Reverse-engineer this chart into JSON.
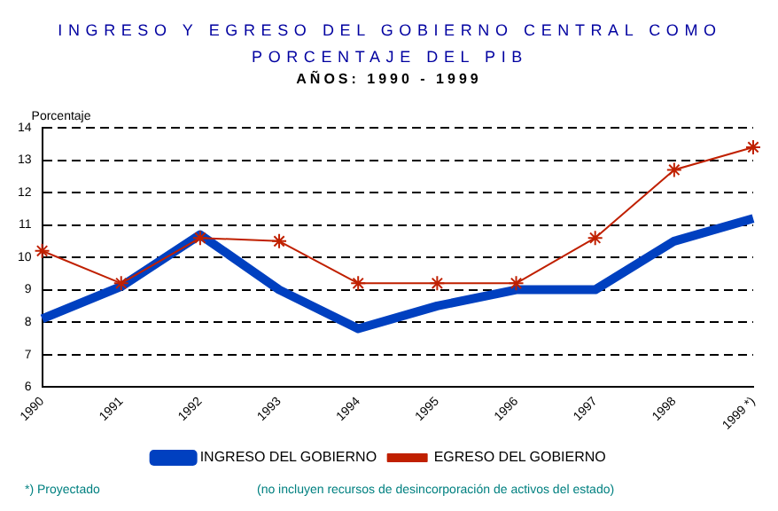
{
  "chart_data": {
    "type": "line",
    "title": "INGRESO Y EGRESO DEL GOBIERNO CENTRAL COMO PORCENTAJE DEL PIB",
    "subtitle": "AÑOS: 1990 - 1999",
    "ylabel": "Porcentaje",
    "categories": [
      "1990",
      "1991",
      "1992",
      "1993",
      "1994",
      "1995",
      "1996",
      "1997",
      "1998",
      "1999 *)"
    ],
    "series": [
      {
        "name": "INGRESO DEL GOBIERNO",
        "color": "#0040c0",
        "marker": "none",
        "values": [
          8.1,
          9.1,
          10.7,
          9.0,
          7.8,
          8.5,
          9.0,
          9.0,
          10.5,
          11.2
        ]
      },
      {
        "name": "EGRESO DEL GOBIERNO",
        "color": "#c02000",
        "marker": "cross",
        "values": [
          10.2,
          9.2,
          10.6,
          10.5,
          9.2,
          9.2,
          9.2,
          10.6,
          12.7,
          13.4
        ]
      }
    ],
    "ylim": [
      6,
      14
    ],
    "yticks": [
      6,
      7,
      8,
      9,
      10,
      11,
      12,
      13,
      14
    ],
    "grid": "y",
    "legend": "bottom",
    "annotations": [
      "*) Proyectado",
      "(no incluyen recursos de desincorporación de activos del estado)"
    ]
  }
}
